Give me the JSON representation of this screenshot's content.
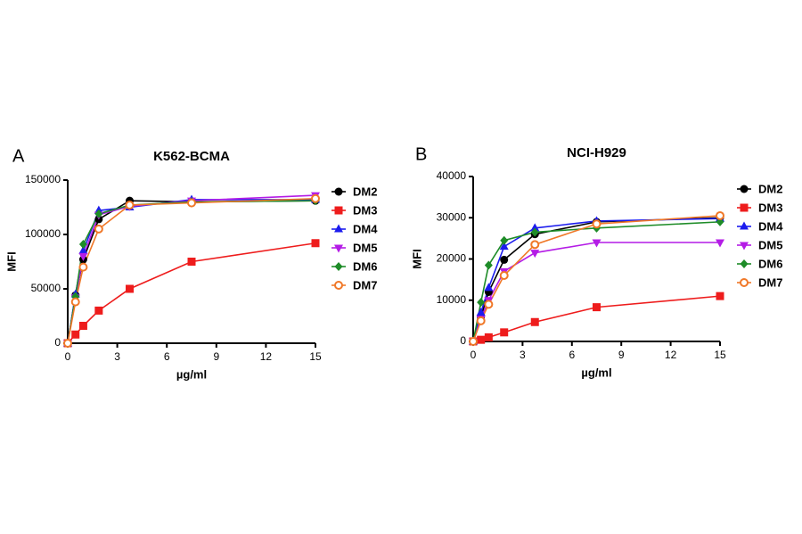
{
  "chart_data": [
    {
      "type": "line",
      "panel_label": "A",
      "title": "K562-BCMA",
      "x_label": "µg/ml",
      "y_label": "MFI",
      "x": [
        0,
        0.47,
        0.94,
        1.88,
        3.75,
        7.5,
        15
      ],
      "xlim": [
        0,
        15
      ],
      "xticks": [
        0,
        3,
        6,
        9,
        12,
        15
      ],
      "ylim": [
        0,
        150000
      ],
      "yticks": [
        0,
        50000,
        100000,
        150000
      ],
      "series": [
        {
          "name": "DM2",
          "color": "#000000",
          "marker": "circle",
          "values": [
            0,
            44000,
            77000,
            114000,
            131000,
            130000,
            131000
          ]
        },
        {
          "name": "DM3",
          "color": "#ee1c1c",
          "marker": "square",
          "values": [
            0,
            8000,
            16000,
            30000,
            50000,
            75000,
            92000
          ]
        },
        {
          "name": "DM4",
          "color": "#1c1cee",
          "marker": "triangle-up",
          "values": [
            0,
            45000,
            85000,
            122000,
            125000,
            132000,
            132000
          ]
        },
        {
          "name": "DM5",
          "color": "#b41ce6",
          "marker": "triangle-down",
          "values": [
            0,
            42000,
            80000,
            118000,
            126000,
            131000,
            136000
          ]
        },
        {
          "name": "DM6",
          "color": "#1e8c28",
          "marker": "diamond",
          "values": [
            0,
            43000,
            91000,
            119000,
            127000,
            130000,
            131000
          ]
        },
        {
          "name": "DM7",
          "color": "#f07828",
          "marker": "open-circle",
          "values": [
            0,
            38000,
            70000,
            105000,
            127000,
            129000,
            133000
          ]
        }
      ]
    },
    {
      "type": "line",
      "panel_label": "B",
      "title": "NCI-H929",
      "x_label": "µg/ml",
      "y_label": "MFI",
      "x": [
        0,
        0.47,
        0.94,
        1.88,
        3.75,
        7.5,
        15
      ],
      "xlim": [
        0,
        15
      ],
      "xticks": [
        0,
        3,
        6,
        9,
        12,
        15
      ],
      "ylim": [
        0,
        40000
      ],
      "yticks": [
        0,
        10000,
        20000,
        30000,
        40000
      ],
      "series": [
        {
          "name": "DM2",
          "color": "#000000",
          "marker": "circle",
          "values": [
            0,
            6000,
            12000,
            19800,
            26000,
            29000,
            30000
          ]
        },
        {
          "name": "DM3",
          "color": "#ee1c1c",
          "marker": "square",
          "values": [
            0,
            400,
            1000,
            2200,
            4700,
            8300,
            11000
          ]
        },
        {
          "name": "DM4",
          "color": "#1c1cee",
          "marker": "triangle-up",
          "values": [
            0,
            7000,
            13000,
            23000,
            27500,
            29200,
            29800
          ]
        },
        {
          "name": "DM5",
          "color": "#b41ce6",
          "marker": "triangle-down",
          "values": [
            0,
            5500,
            10000,
            17000,
            21500,
            24000,
            24000
          ]
        },
        {
          "name": "DM6",
          "color": "#1e8c28",
          "marker": "diamond",
          "values": [
            0,
            9500,
            18500,
            24500,
            26500,
            27500,
            29000
          ]
        },
        {
          "name": "DM7",
          "color": "#f07828",
          "marker": "open-circle",
          "values": [
            0,
            5000,
            9000,
            16000,
            23500,
            28500,
            30500
          ]
        }
      ]
    }
  ]
}
